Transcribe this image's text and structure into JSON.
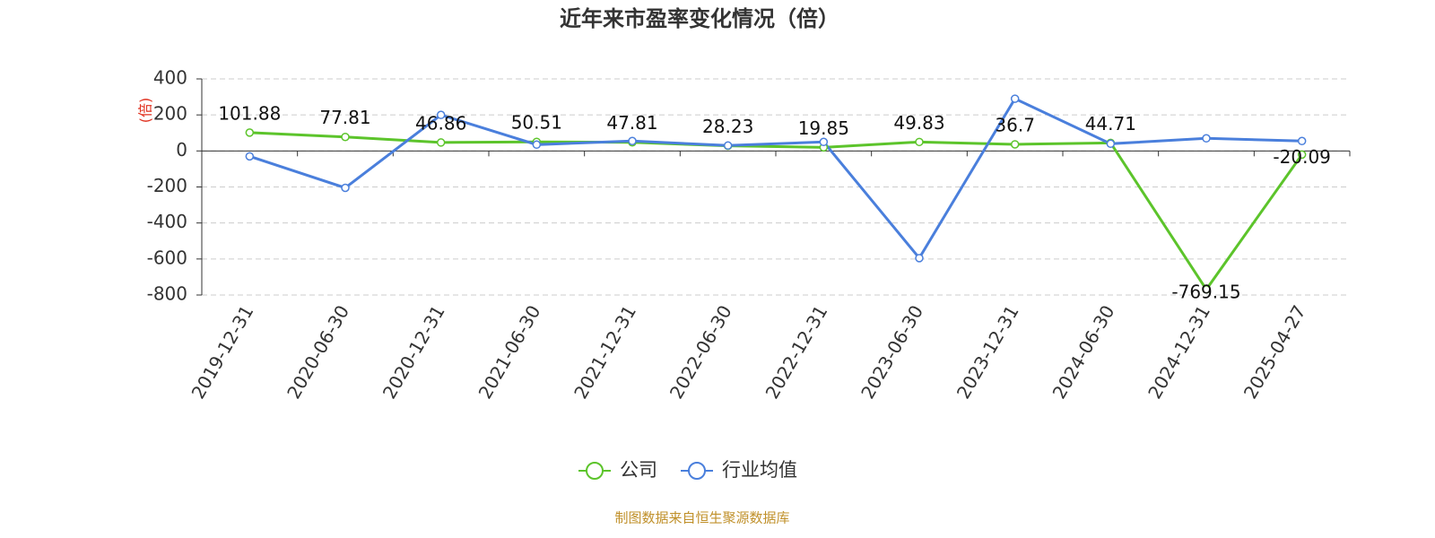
{
  "chart_data": {
    "type": "line",
    "title": "近年来市盈率变化情况（倍）",
    "y_label": "(倍)",
    "source": "制图数据来自恒生聚源数据库",
    "categories": [
      "2019-12-31",
      "2020-06-30",
      "2020-12-31",
      "2021-06-30",
      "2021-12-31",
      "2022-06-30",
      "2022-12-31",
      "2023-06-30",
      "2023-12-31",
      "2024-06-30",
      "2024-12-31",
      "2025-04-27"
    ],
    "series": [
      {
        "name": "公司",
        "color": "#5cc42b",
        "values": [
          101.88,
          77.81,
          46.86,
          50.51,
          47.81,
          28.23,
          19.85,
          49.83,
          36.7,
          44.71,
          -769.15,
          -20.09
        ]
      },
      {
        "name": "行业均值",
        "color": "#4a7fdc",
        "values": [
          -30,
          -205,
          200,
          35,
          55,
          30,
          50,
          -595,
          290,
          40,
          70,
          55
        ]
      }
    ],
    "ylim": [
      -800,
      400
    ],
    "yticks": [
      -800,
      -600,
      -400,
      -200,
      0,
      200,
      400
    ],
    "grid": true
  }
}
